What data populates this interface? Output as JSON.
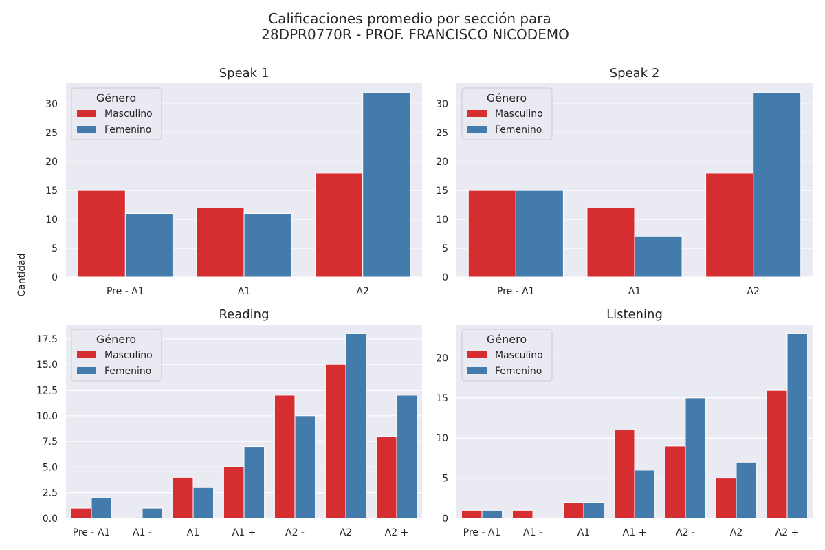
{
  "figure": {
    "title_line1": "Calificaciones promedio por sección para",
    "title_line2": "28DPR0770R - PROF. FRANCISCO NICODEMO",
    "ylabel": "Cantidad"
  },
  "colors": {
    "Masculino": "#d62d31",
    "Femenino": "#437bac",
    "plot_background": "#eaeaf2",
    "grid": "#ffffff"
  },
  "chart_data": [
    {
      "type": "bar",
      "title": "Speak 1",
      "categories": [
        "Pre - A1",
        "A1",
        "A2"
      ],
      "series": [
        {
          "name": "Masculino",
          "values": [
            15,
            12,
            18
          ]
        },
        {
          "name": "Femenino",
          "values": [
            11,
            11,
            32
          ]
        }
      ],
      "yticks": [
        0,
        5,
        10,
        15,
        20,
        25,
        30
      ],
      "ylim": [
        0,
        33.6
      ],
      "grid": true,
      "legend": {
        "title": "Género",
        "position": "upper-left"
      }
    },
    {
      "type": "bar",
      "title": "Speak 2",
      "categories": [
        "Pre - A1",
        "A1",
        "A2"
      ],
      "series": [
        {
          "name": "Masculino",
          "values": [
            15,
            12,
            18
          ]
        },
        {
          "name": "Femenino",
          "values": [
            15,
            7,
            32
          ]
        }
      ],
      "yticks": [
        0,
        5,
        10,
        15,
        20,
        25,
        30
      ],
      "ylim": [
        0,
        33.6
      ],
      "grid": true,
      "legend": {
        "title": "Género",
        "position": "upper-left"
      }
    },
    {
      "type": "bar",
      "title": "Reading",
      "categories": [
        "Pre - A1",
        "A1 -",
        "A1",
        "A1 +",
        "A2 -",
        "A2",
        "A2 +"
      ],
      "series": [
        {
          "name": "Masculino",
          "values": [
            1,
            0,
            4,
            5,
            12,
            15,
            8
          ]
        },
        {
          "name": "Femenino",
          "values": [
            2,
            1,
            3,
            7,
            10,
            18,
            12
          ]
        }
      ],
      "yticks": [
        "0.0",
        "2.5",
        "5.0",
        "7.5",
        "10.0",
        "12.5",
        "15.0",
        "17.5"
      ],
      "ylim": [
        0,
        18.9
      ],
      "grid": true,
      "legend": {
        "title": "Género",
        "position": "upper-left"
      }
    },
    {
      "type": "bar",
      "title": "Listening",
      "categories": [
        "Pre - A1",
        "A1 -",
        "A1",
        "A1 +",
        "A2 -",
        "A2",
        "A2 +"
      ],
      "series": [
        {
          "name": "Masculino",
          "values": [
            1,
            1,
            2,
            11,
            9,
            5,
            16
          ]
        },
        {
          "name": "Femenino",
          "values": [
            1,
            0,
            2,
            6,
            15,
            7,
            23
          ]
        }
      ],
      "yticks": [
        0,
        5,
        10,
        15,
        20
      ],
      "ylim": [
        0,
        24.15
      ],
      "grid": true,
      "legend": {
        "title": "Género",
        "position": "upper-left"
      }
    }
  ]
}
